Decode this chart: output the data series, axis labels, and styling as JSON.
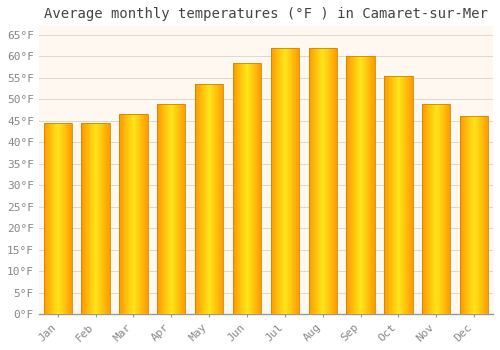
{
  "title": "Average monthly temperatures (°F ) in Camaret-sur-Mer",
  "months": [
    "Jan",
    "Feb",
    "Mar",
    "Apr",
    "May",
    "Jun",
    "Jul",
    "Aug",
    "Sep",
    "Oct",
    "Nov",
    "Dec"
  ],
  "values": [
    44.5,
    44.5,
    46.5,
    49,
    53.5,
    58.5,
    62,
    62,
    60,
    55.5,
    49,
    46
  ],
  "bar_color": "#FFA500",
  "bar_edge_color": "#CC8800",
  "background_color": "#FFFFFF",
  "plot_bg_color": "#FFF8F0",
  "grid_color": "#E0D8D0",
  "text_color": "#888888",
  "title_color": "#444444",
  "ylim": [
    0,
    67
  ],
  "yticks": [
    0,
    5,
    10,
    15,
    20,
    25,
    30,
    35,
    40,
    45,
    50,
    55,
    60,
    65
  ],
  "title_fontsize": 10,
  "tick_fontsize": 8,
  "bar_width": 0.75
}
